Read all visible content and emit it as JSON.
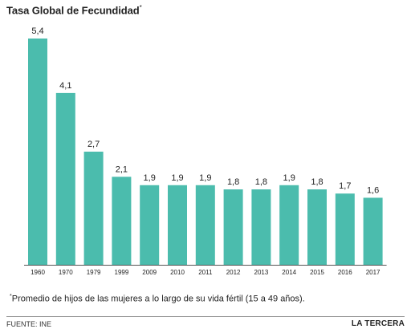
{
  "title": "Tasa Global de Fecundidad",
  "title_mark": "*",
  "footnote_mark": "*",
  "footnote": "Promedio de hijos de las mujeres a lo largo de su vida fértil (15 a 49 años).",
  "source": "FUENTE: INE",
  "brand": "LA TERCERA",
  "colors": {
    "bar": "#4bbcad",
    "axis": "#555555",
    "text": "#222222"
  },
  "chart_data": {
    "type": "bar",
    "title": "Tasa Global de Fecundidad",
    "xlabel": "",
    "ylabel": "",
    "categories": [
      "1960",
      "1970",
      "1979",
      "1999",
      "2009",
      "2010",
      "2011",
      "2012",
      "2013",
      "2014",
      "2015",
      "2016",
      "2017"
    ],
    "values": [
      5.4,
      4.1,
      2.7,
      2.1,
      1.9,
      1.9,
      1.9,
      1.8,
      1.8,
      1.9,
      1.8,
      1.7,
      1.6
    ],
    "value_labels": [
      "5,4",
      "4,1",
      "2,7",
      "2,1",
      "1,9",
      "1,9",
      "1,9",
      "1,8",
      "1,8",
      "1,9",
      "1,8",
      "1,7",
      "1,6"
    ],
    "ylim": [
      0,
      5.4
    ],
    "grid": false,
    "legend": "none"
  }
}
